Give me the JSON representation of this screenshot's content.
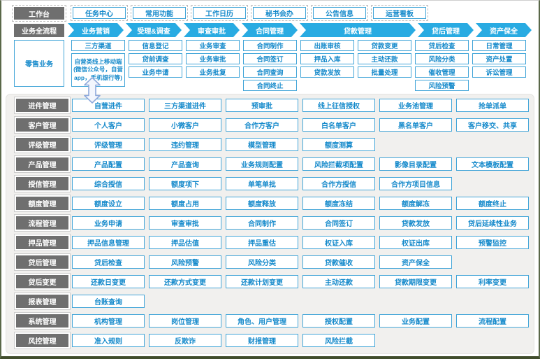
{
  "colors": {
    "accent": "#29abe2",
    "box_border": "#42a5d8",
    "box_text": "#168acb",
    "label_bg": "#6f6f6f",
    "panel_bg": "#f1f0ee",
    "frame_bottom": "#414d2c",
    "arrow_outline": "#8ea9db"
  },
  "workbench": {
    "label": "工作台",
    "items": [
      "任务中心",
      "常用功能",
      "工作日历",
      "秘书会办",
      "公告信息",
      "运营看板"
    ]
  },
  "process": {
    "label": "业务全流程",
    "steps": [
      {
        "label": "业务营销",
        "span": 1
      },
      {
        "label": "受理&调查",
        "span": 1
      },
      {
        "label": "审查审批",
        "span": 1
      },
      {
        "label": "合同管理",
        "span": 1
      },
      {
        "label": "贷款管理",
        "span": 2
      },
      {
        "label": "贷后管理",
        "span": 1
      },
      {
        "label": "资产保全",
        "span": 1
      }
    ]
  },
  "retail": {
    "label": "零售业务",
    "columns": [
      {
        "items": [
          {
            "label": "三方渠道"
          },
          {
            "label": "自营类线上移动端(微信公众号，自营app，手机银行等)",
            "tall": true
          }
        ]
      },
      {
        "items": [
          {
            "label": "信息登记"
          },
          {
            "label": "贷前调查"
          },
          {
            "label": "业务申请"
          }
        ]
      },
      {
        "items": [
          {
            "label": "业务审查"
          },
          {
            "label": "业务审批"
          },
          {
            "label": "业务批复"
          }
        ]
      },
      {
        "items": [
          {
            "label": "合同制作"
          },
          {
            "label": "合同签订"
          },
          {
            "label": "合同查询"
          },
          {
            "label": "合同终止"
          }
        ]
      },
      {
        "items": [
          {
            "label": "出账审核"
          },
          {
            "label": "押品入库"
          },
          {
            "label": "贷款发放"
          }
        ]
      },
      {
        "items": [
          {
            "label": "贷款变更"
          },
          {
            "label": "主动还款"
          },
          {
            "label": "批量处理"
          }
        ]
      },
      {
        "items": [
          {
            "label": "贷后检查"
          },
          {
            "label": "风险分类"
          },
          {
            "label": "催收管理"
          },
          {
            "label": "风险预警"
          }
        ]
      },
      {
        "items": [
          {
            "label": "日常管理"
          },
          {
            "label": "资产处置"
          },
          {
            "label": "诉讼管理"
          }
        ]
      }
    ]
  },
  "modules": [
    {
      "label": "进件管理",
      "items": [
        "自营进件",
        "三方渠道进件",
        "预审批",
        "线上征信授权",
        "业务池管理",
        "抢单派单"
      ]
    },
    {
      "label": "客户管理",
      "items": [
        "个人客户",
        "小微客户",
        "合作方客户",
        "白名单客户",
        "黑名单客户",
        "客户移交、共享"
      ]
    },
    {
      "label": "评级管理",
      "items": [
        "评级管理",
        "违约管理",
        "模型管理",
        "额度测算"
      ]
    },
    {
      "label": "产品管理",
      "items": [
        "产品配置",
        "产品查询",
        "业务规则配置",
        "风险拦截项配置",
        "影像目录配置",
        "文本模板配置"
      ]
    },
    {
      "label": "授信管理",
      "items": [
        "综合授信",
        "额度项下",
        "单笔单批",
        "合作方授信",
        "合作方项目信息"
      ]
    },
    {
      "label": "额度管理",
      "items": [
        "额度设立",
        "额度占用",
        "额度释放",
        "额度冻结",
        "额度解冻",
        "额度终止"
      ]
    },
    {
      "label": "流程管理",
      "items": [
        "业务申请",
        "审查审批",
        "合同制作",
        "合同签订",
        "贷款发放",
        "贷后延续性业务"
      ]
    },
    {
      "label": "押品管理",
      "items": [
        "押品信息管理",
        "押品估值",
        "押品重估",
        "权证入库",
        "权证出库",
        "预警监控"
      ]
    },
    {
      "label": "贷后管理",
      "items": [
        "贷后检查",
        "风险预警",
        "风险分类",
        "贷款催收",
        "资产保全"
      ]
    },
    {
      "label": "贷后变更",
      "items": [
        "还款日变更",
        "还款方式变更",
        "还款计划变更",
        "主动还款",
        "贷款期限变更",
        "利率变更"
      ]
    },
    {
      "label": "报表管理",
      "items": [
        "台账查询"
      ]
    },
    {
      "label": "系统管理",
      "items": [
        "机构管理",
        "岗位管理",
        "角色、用户管理",
        "授权配置",
        "业务配置",
        "流程配置"
      ]
    },
    {
      "label": "风控管理",
      "items": [
        "准入规则",
        "反欺诈",
        "财报管理",
        "风险拦截"
      ]
    }
  ]
}
